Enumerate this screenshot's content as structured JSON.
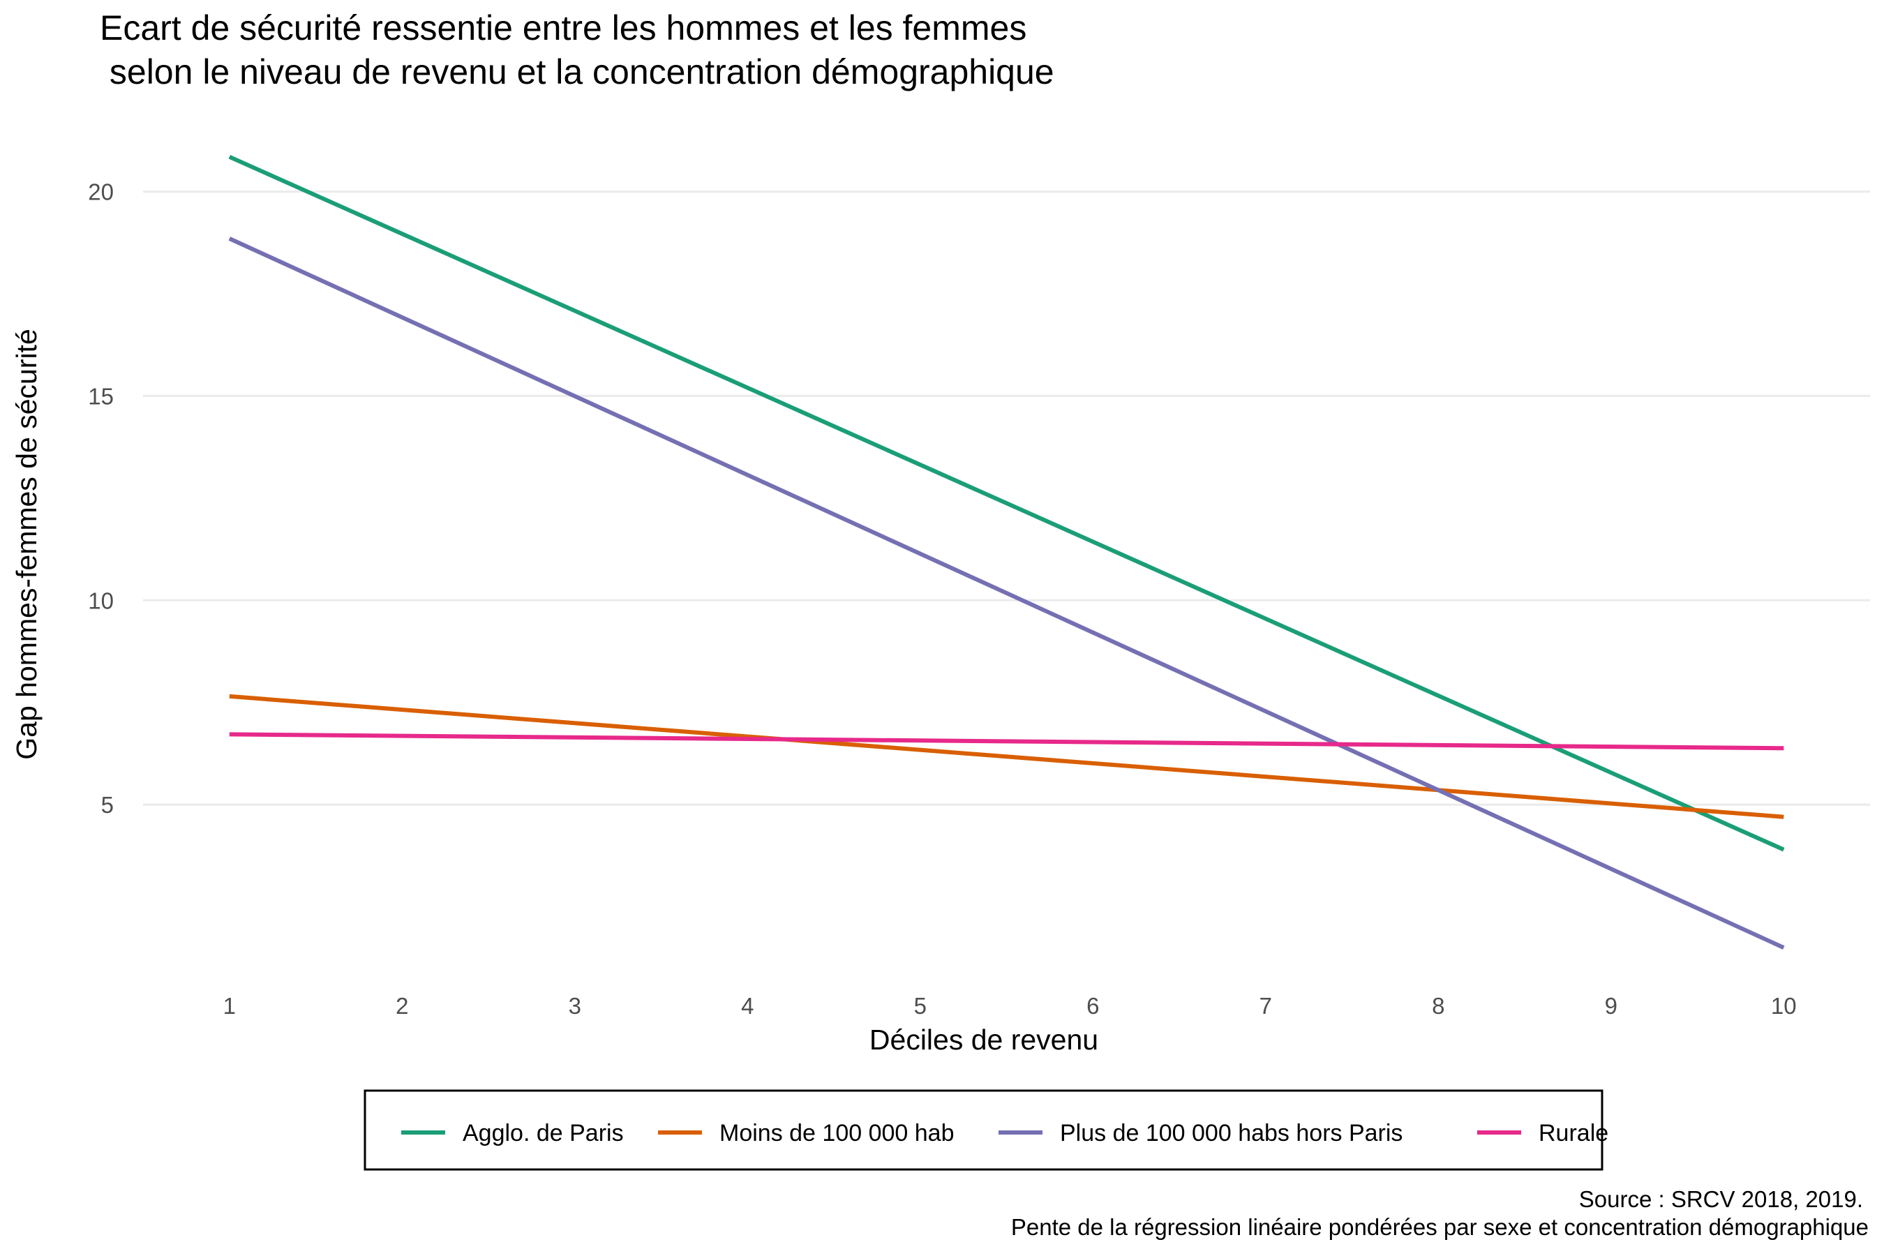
{
  "chart_data": {
    "type": "line",
    "title": "Ecart de sécurité ressentie entre les hommes et les femmes",
    "subtitle": " selon le niveau de revenu et la concentration démographique",
    "xlabel": "Déciles de revenu",
    "ylabel": "Gap hommes-femmes de sécurité",
    "x_ticks": [
      "1",
      "2",
      "3",
      "4",
      "5",
      "6",
      "7",
      "8",
      "9",
      "10"
    ],
    "y_ticks": [
      "5",
      "10",
      "15",
      "20"
    ],
    "xlim": [
      0.5,
      10.5
    ],
    "ylim": [
      0.7,
      21.7
    ],
    "grid": true,
    "legend_position": "bottom",
    "series": [
      {
        "name": "Agglo. de Paris",
        "color": "#1b9e77",
        "x": [
          1,
          10
        ],
        "y": [
          20.85,
          3.9
        ]
      },
      {
        "name": "Moins de 100 000 hab",
        "color": "#d95f02",
        "x": [
          1,
          10
        ],
        "y": [
          7.65,
          4.7
        ]
      },
      {
        "name": "Plus de 100 000 habs hors Paris",
        "color": "#7570b3",
        "x": [
          1,
          10
        ],
        "y": [
          18.85,
          1.5
        ]
      },
      {
        "name": "Rurale",
        "color": "#e7298a",
        "x": [
          1,
          10
        ],
        "y": [
          6.72,
          6.38
        ]
      }
    ],
    "caption": [
      "Source : SRCV 2018, 2019.",
      "Pente de la régression linéaire pondérées par sexe et concentration démographique"
    ]
  }
}
